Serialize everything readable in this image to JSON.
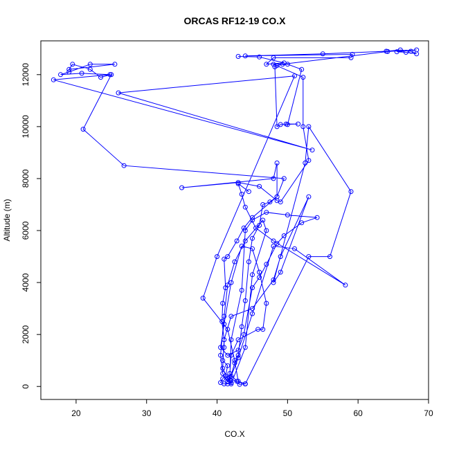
{
  "chart_data": {
    "type": "line",
    "title": "ORCAS RF12-19 CO.X",
    "xlabel": "CO.X",
    "ylabel": "Altitude (m)",
    "xlim": [
      15,
      70
    ],
    "ylim": [
      -500,
      13300
    ],
    "xticks": [
      20,
      30,
      40,
      50,
      60,
      70
    ],
    "yticks": [
      0,
      2000,
      4000,
      6000,
      8000,
      10000,
      12000
    ],
    "grid": false,
    "markers": "open-circle",
    "series": [
      {
        "color": "#0000ff",
        "points": [
          [
            43.0,
            12700
          ],
          [
            46.0,
            12680
          ],
          [
            49.5,
            12450
          ],
          [
            47.0,
            12400
          ],
          [
            48.0,
            12650
          ],
          [
            59.0,
            12650
          ],
          [
            59.2,
            12780
          ],
          [
            44.0,
            12720
          ],
          [
            55.0,
            12800
          ],
          [
            64.0,
            12900
          ],
          [
            66.0,
            12950
          ],
          [
            67.5,
            12900
          ],
          [
            68.3,
            12800
          ],
          [
            66.8,
            12860
          ],
          [
            65.5,
            12880
          ],
          [
            68.3,
            12950
          ],
          [
            64.2,
            12890
          ],
          [
            49.3,
            12400
          ],
          [
            48.5,
            12350
          ],
          [
            48.2,
            12300
          ],
          [
            48.5,
            10000
          ],
          [
            49.0,
            10080
          ],
          [
            51.5,
            10100
          ],
          [
            49.8,
            10100
          ],
          [
            50.0,
            10080
          ],
          [
            52.0,
            12200
          ],
          [
            50.0,
            12400
          ],
          [
            48.0,
            12400
          ],
          [
            52.2,
            11900
          ],
          [
            52.2,
            10000
          ],
          [
            53.0,
            8700
          ],
          [
            49.0,
            7100
          ],
          [
            48.5,
            7150
          ],
          [
            46.0,
            7700
          ],
          [
            43.0,
            7850
          ],
          [
            35.0,
            7650
          ],
          [
            48.0,
            8000
          ],
          [
            48.5,
            8600
          ],
          [
            48.5,
            7300
          ],
          [
            45.0,
            6500
          ],
          [
            43.8,
            6100
          ],
          [
            42.8,
            5600
          ],
          [
            41.5,
            5000
          ],
          [
            41.0,
            4900
          ],
          [
            41.2,
            3800
          ],
          [
            40.8,
            3200
          ],
          [
            40.7,
            2500
          ],
          [
            41.0,
            1800
          ],
          [
            41.0,
            1500
          ],
          [
            40.8,
            1000
          ],
          [
            41.5,
            800
          ],
          [
            41.2,
            400
          ],
          [
            40.8,
            300
          ],
          [
            40.5,
            150
          ],
          [
            41.0,
            100
          ],
          [
            41.5,
            100
          ],
          [
            42.0,
            150
          ],
          [
            41.8,
            250
          ],
          [
            42.5,
            900
          ],
          [
            43.0,
            1200
          ],
          [
            43.5,
            2300
          ],
          [
            44.0,
            3300
          ],
          [
            44.5,
            4800
          ],
          [
            45.0,
            5700
          ],
          [
            46.0,
            6200
          ],
          [
            46.5,
            7000
          ],
          [
            47.5,
            7100
          ],
          [
            48.5,
            7300
          ],
          [
            49.5,
            8000
          ],
          [
            26.8,
            8500
          ],
          [
            21.0,
            9900
          ],
          [
            25.0,
            12000
          ],
          [
            23.5,
            11900
          ],
          [
            22.0,
            12200
          ],
          [
            19.5,
            12400
          ],
          [
            19.0,
            12200
          ],
          [
            25.5,
            12400
          ],
          [
            22.0,
            12400
          ],
          [
            19.0,
            12100
          ],
          [
            17.8,
            12000
          ],
          [
            20.8,
            12050
          ],
          [
            24.8,
            12000
          ],
          [
            16.8,
            11800
          ],
          [
            53.5,
            9100
          ],
          [
            26.0,
            11300
          ],
          [
            51.0,
            11950
          ],
          [
            40.0,
            5000
          ],
          [
            38.0,
            3400
          ],
          [
            41.5,
            2200
          ],
          [
            42.5,
            1000
          ],
          [
            43.0,
            200
          ],
          [
            44.0,
            100
          ],
          [
            44.0,
            100
          ],
          [
            43.2,
            80
          ],
          [
            41.8,
            350
          ],
          [
            42.0,
            1800
          ],
          [
            43.5,
            3700
          ],
          [
            44.0,
            6000
          ],
          [
            45.0,
            6400
          ],
          [
            47.0,
            6700
          ],
          [
            50.0,
            6600
          ],
          [
            54.2,
            6500
          ],
          [
            52.0,
            6300
          ],
          [
            49.5,
            5800
          ],
          [
            48.5,
            5500
          ],
          [
            47.0,
            4700
          ],
          [
            46.0,
            4200
          ],
          [
            45.0,
            3800
          ],
          [
            43.8,
            2000
          ],
          [
            43.0,
            1400
          ],
          [
            41.5,
            1200
          ],
          [
            40.5,
            1500
          ],
          [
            41.0,
            2400
          ],
          [
            42.0,
            4000
          ],
          [
            43.5,
            5400
          ],
          [
            45.0,
            5300
          ],
          [
            46.0,
            4400
          ],
          [
            47.0,
            3200
          ],
          [
            46.5,
            2200
          ],
          [
            45.8,
            2200
          ],
          [
            43.0,
            1800
          ],
          [
            42.0,
            1200
          ],
          [
            41.8,
            500
          ],
          [
            42.8,
            200
          ],
          [
            44.0,
            100
          ],
          [
            53.0,
            5000
          ],
          [
            56.0,
            5000
          ],
          [
            59.0,
            7500
          ],
          [
            53.0,
            10000
          ],
          [
            52.5,
            8600
          ],
          [
            48.0,
            4000
          ],
          [
            49.0,
            4400
          ],
          [
            53.0,
            7300
          ],
          [
            49.0,
            5000
          ],
          [
            48.0,
            4100
          ],
          [
            45.0,
            3000
          ],
          [
            42.0,
            2700
          ],
          [
            41.0,
            1800
          ],
          [
            40.8,
            700
          ],
          [
            41.5,
            300
          ],
          [
            42.0,
            100
          ],
          [
            44.0,
            1500
          ],
          [
            45.0,
            4300
          ],
          [
            47.0,
            6000
          ],
          [
            46.5,
            6400
          ],
          [
            44.0,
            5600
          ],
          [
            42.5,
            4800
          ],
          [
            41.5,
            3900
          ],
          [
            41.0,
            2700
          ],
          [
            40.5,
            1200
          ],
          [
            40.8,
            500
          ],
          [
            41.5,
            200
          ],
          [
            42.0,
            400
          ],
          [
            43.0,
            1100
          ],
          [
            45.0,
            2800
          ],
          [
            48.0,
            5400
          ],
          [
            51.0,
            5300
          ],
          [
            58.2,
            3900
          ],
          [
            48.0,
            5600
          ],
          [
            45.5,
            6100
          ],
          [
            44.0,
            6900
          ],
          [
            43.5,
            7400
          ],
          [
            43.0,
            7800
          ],
          [
            44.5,
            7500
          ]
        ]
      }
    ]
  }
}
